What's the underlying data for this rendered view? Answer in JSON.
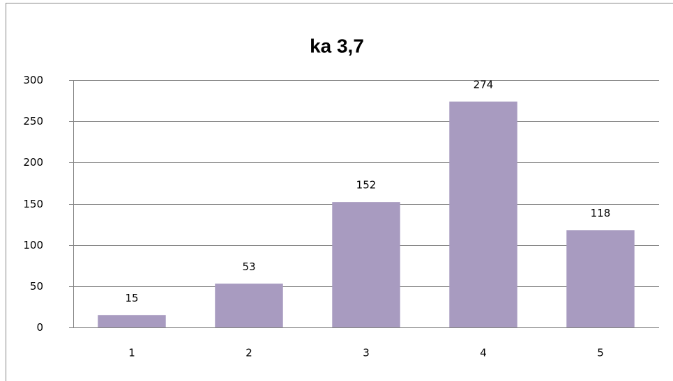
{
  "chart_data": {
    "type": "bar",
    "title": "ka 3,7",
    "categories": [
      "1",
      "2",
      "3",
      "4",
      "5"
    ],
    "values": [
      15,
      53,
      152,
      274,
      118
    ],
    "color": "#a89bc0",
    "ylim": [
      0,
      300
    ],
    "yticks": [
      0,
      50,
      100,
      150,
      200,
      250,
      300
    ],
    "grid": true,
    "data_labels": true
  }
}
